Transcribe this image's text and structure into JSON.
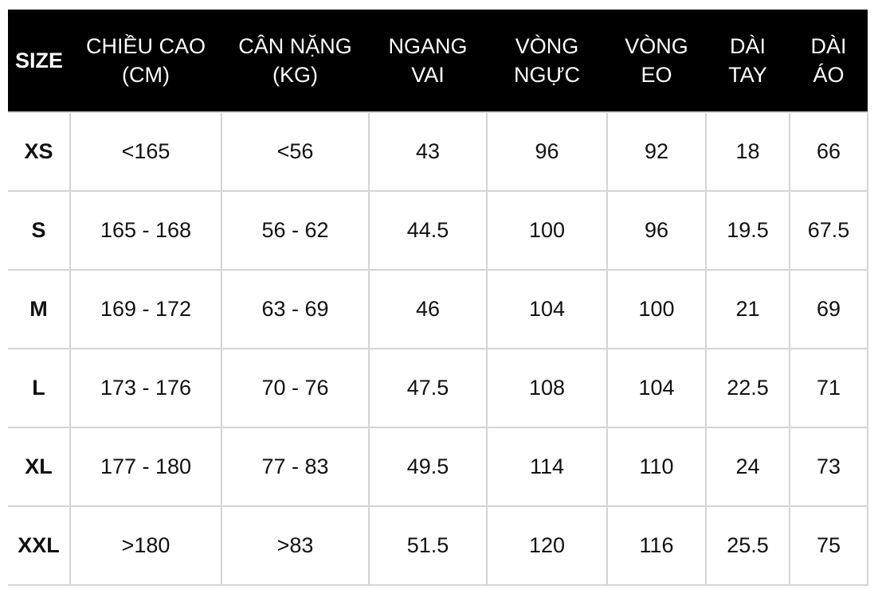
{
  "table": {
    "headers": [
      "SIZE",
      "CHIỀU CAO\n(CM)",
      "CÂN NẶNG\n(KG)",
      "NGANG\nVAI",
      "VÒNG\nNGỰC",
      "VÒNG\nEO",
      "DÀI\nTAY",
      "DÀI\nÁO"
    ],
    "rows": [
      [
        "XS",
        "<165",
        "<56",
        "43",
        "96",
        "92",
        "18",
        "66"
      ],
      [
        "S",
        "165 - 168",
        "56 - 62",
        "44.5",
        "100",
        "96",
        "19.5",
        "67.5"
      ],
      [
        "M",
        "169 - 172",
        "63 - 69",
        "46",
        "104",
        "100",
        "21",
        "69"
      ],
      [
        "L",
        "173 - 176",
        "70 - 76",
        "47.5",
        "108",
        "104",
        "22.5",
        "71"
      ],
      [
        "XL",
        "177 - 180",
        "77 - 83",
        "49.5",
        "114",
        "110",
        "24",
        "73"
      ],
      [
        "XXL",
        ">180",
        ">83",
        "51.5",
        "120",
        "116",
        "25.5",
        "75"
      ]
    ]
  },
  "colors": {
    "header_background": "#000000",
    "header_text": "#ffffff",
    "grid_lines": "#d4d4d4",
    "cell_text": "#111111"
  }
}
